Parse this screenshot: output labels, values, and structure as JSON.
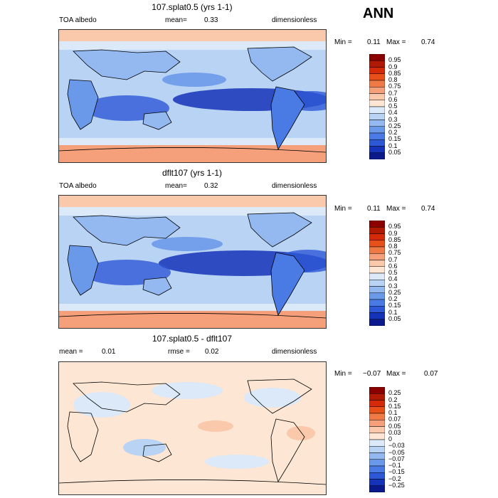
{
  "header": {
    "season": "ANN"
  },
  "panels": [
    {
      "title": "107.splat0.5 (yrs 1-1)",
      "left_label": "TOA albedo",
      "mean_label": "mean=",
      "mean_value": "0.33",
      "units": "dimensionless",
      "min_label": "Min =",
      "min_value": "0.11",
      "max_label": "Max =",
      "max_value": "0.74",
      "levels": [
        "0.95",
        "0.9",
        "0.85",
        "0.8",
        "0.75",
        "0.7",
        "0.6",
        "0.5",
        "0.4",
        "0.3",
        "0.25",
        "0.2",
        "0.15",
        "0.1",
        "0.05"
      ],
      "colors": [
        "#8b0000",
        "#b01a05",
        "#d42a0a",
        "#e8501a",
        "#f07a45",
        "#f5a07a",
        "#fac8aa",
        "#fde6d3",
        "#dbe9f8",
        "#b9d3f5",
        "#93b9f0",
        "#6b99ea",
        "#4a7ae4",
        "#2d58d6",
        "#1533b8",
        "#0a1a8c"
      ]
    },
    {
      "title": "dflt107 (yrs 1-1)",
      "left_label": "TOA albedo",
      "mean_label": "mean=",
      "mean_value": "0.32",
      "units": "dimensionless",
      "min_label": "Min =",
      "min_value": "0.11",
      "max_label": "Max =",
      "max_value": "0.74",
      "levels": [
        "0.95",
        "0.9",
        "0.85",
        "0.8",
        "0.75",
        "0.7",
        "0.6",
        "0.5",
        "0.4",
        "0.3",
        "0.25",
        "0.2",
        "0.15",
        "0.1",
        "0.05"
      ],
      "colors": [
        "#8b0000",
        "#b01a05",
        "#d42a0a",
        "#e8501a",
        "#f07a45",
        "#f5a07a",
        "#fac8aa",
        "#fde6d3",
        "#dbe9f8",
        "#b9d3f5",
        "#93b9f0",
        "#6b99ea",
        "#4a7ae4",
        "#2d58d6",
        "#1533b8",
        "#0a1a8c"
      ]
    },
    {
      "title": "107.splat0.5 - dflt107",
      "left_label": "mean =",
      "left_value": "0.01",
      "rmse_label": "rmse =",
      "rmse_value": "0.02",
      "units": "dimensionless",
      "min_label": "Min =",
      "min_value": "−0.07",
      "max_label": "Max =",
      "max_value": "0.07",
      "levels": [
        "0.25",
        "0.2",
        "0.15",
        "0.1",
        "0.07",
        "0.05",
        "0.03",
        "0",
        "−0.03",
        "−0.05",
        "−0.07",
        "−0.1",
        "−0.15",
        "−0.2",
        "−0.25"
      ],
      "colors": [
        "#8b0000",
        "#b01a05",
        "#d42a0a",
        "#e8501a",
        "#f07a45",
        "#f5a07a",
        "#fac8aa",
        "#fde6d3",
        "#dbe9f8",
        "#b9d3f5",
        "#93b9f0",
        "#6b99ea",
        "#4a7ae4",
        "#2d58d6",
        "#1533b8",
        "#0a1a8c"
      ]
    }
  ],
  "chart_data": [
    {
      "type": "heatmap",
      "title": "107.splat0.5 (yrs 1-1)",
      "variable": "TOA albedo",
      "units": "dimensionless",
      "mean": 0.33,
      "min": 0.11,
      "max": 0.74,
      "contour_levels": [
        0.05,
        0.1,
        0.15,
        0.2,
        0.25,
        0.3,
        0.4,
        0.5,
        0.6,
        0.7,
        0.75,
        0.8,
        0.85,
        0.9,
        0.95
      ]
    },
    {
      "type": "heatmap",
      "title": "dflt107 (yrs 1-1)",
      "variable": "TOA albedo",
      "units": "dimensionless",
      "mean": 0.32,
      "min": 0.11,
      "max": 0.74,
      "contour_levels": [
        0.05,
        0.1,
        0.15,
        0.2,
        0.25,
        0.3,
        0.4,
        0.5,
        0.6,
        0.7,
        0.75,
        0.8,
        0.85,
        0.9,
        0.95
      ]
    },
    {
      "type": "heatmap",
      "title": "107.splat0.5 - dflt107",
      "units": "dimensionless",
      "mean": 0.01,
      "rmse": 0.02,
      "min": -0.07,
      "max": 0.07,
      "contour_levels": [
        -0.25,
        -0.2,
        -0.15,
        -0.1,
        -0.07,
        -0.05,
        -0.03,
        0,
        0.03,
        0.05,
        0.07,
        0.1,
        0.15,
        0.2,
        0.25
      ]
    }
  ]
}
